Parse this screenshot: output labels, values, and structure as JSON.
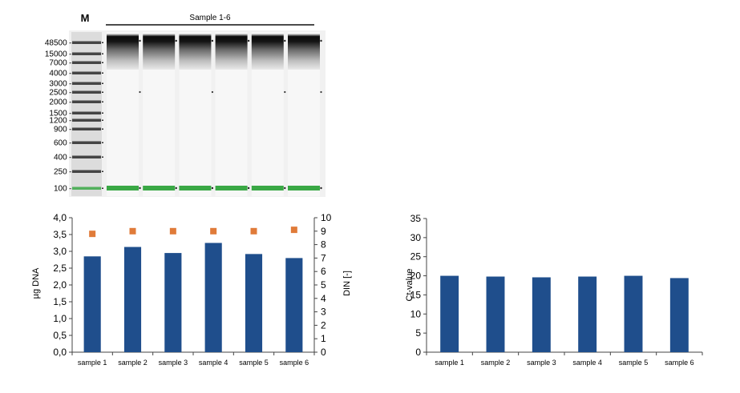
{
  "gel": {
    "marker_label": "M",
    "sample_header": "Sample 1-6",
    "ladder": [
      "48500",
      "15000",
      "7000",
      "4000",
      "3000",
      "2500",
      "2000",
      "1500",
      "1200",
      "900",
      "600",
      "400",
      "250",
      "100"
    ],
    "lane_count": 6,
    "lower_marker_color": "#3aa845"
  },
  "chart_data": [
    {
      "type": "bar",
      "categories": [
        "sample 1",
        "sample 2",
        "sample 3",
        "sample 4",
        "sample 5",
        "sample 6"
      ],
      "series": [
        {
          "values": [
            2.85,
            3.13,
            2.95,
            3.25,
            2.92,
            2.8
          ],
          "color": "#1f4e8c",
          "axis": "left"
        },
        {
          "type": "scatter",
          "values": [
            8.8,
            9.0,
            9.0,
            9.0,
            9.0,
            9.1
          ],
          "color": "#e07b39",
          "axis": "right"
        }
      ],
      "ylabel": "µg DNA",
      "y2label": "DIN [-]",
      "ylim": [
        0,
        4
      ],
      "y2lim": [
        0,
        10
      ],
      "yticks": [
        "0,0",
        "0,5",
        "1,0",
        "1,5",
        "2,0",
        "2,5",
        "3,0",
        "3,5",
        "4,0"
      ],
      "y2ticks": [
        "0",
        "1",
        "2",
        "3",
        "4",
        "5",
        "6",
        "7",
        "8",
        "9",
        "10"
      ]
    },
    {
      "type": "bar",
      "categories": [
        "sample 1",
        "sample 2",
        "sample 3",
        "sample 4",
        "sample 5",
        "sample 6"
      ],
      "series": [
        {
          "values": [
            20.0,
            19.8,
            19.6,
            19.8,
            20.0,
            19.4
          ],
          "color": "#1f4e8c"
        }
      ],
      "ylabel": "Ct-value",
      "ylim": [
        0,
        35
      ],
      "yticks": [
        "0",
        "5",
        "10",
        "15",
        "20",
        "25",
        "30",
        "35"
      ]
    }
  ]
}
